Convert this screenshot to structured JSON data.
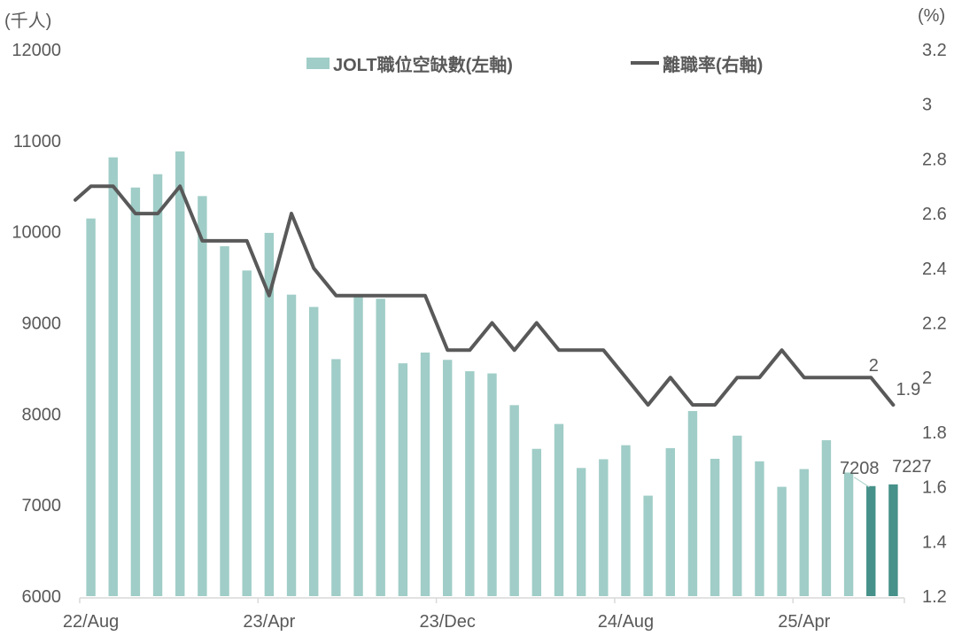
{
  "page": {
    "background": "#ffffff"
  },
  "legend": {
    "bar_label": "JOLT職位空缺數(左軸)",
    "line_label": "離職率(右軸)"
  },
  "colors": {
    "text": "#595959",
    "axis_line": "#d9d9d9",
    "leader_line": "#b3d6d0",
    "bar_light": "#a0cdc7",
    "bar_dark": "#46918a",
    "line": "#595959"
  },
  "chart_data": {
    "type": "bar",
    "subtype": "combo bar(left axis) + line(right axis)",
    "title": "",
    "categories": [
      "22/Aug",
      "22/Sep",
      "22/Oct",
      "22/Nov",
      "22/Dec",
      "23/Jan",
      "23/Feb",
      "23/Mar",
      "23/Apr",
      "23/May",
      "23/Jun",
      "23/Jul",
      "23/Aug",
      "23/Sep",
      "23/Oct",
      "23/Nov",
      "23/Dec",
      "24/Jan",
      "24/Feb",
      "24/Mar",
      "24/Apr",
      "24/May",
      "24/Jun",
      "24/Jul",
      "24/Aug",
      "24/Sep",
      "24/Oct",
      "24/Nov",
      "24/Dec",
      "25/Jan",
      "25/Feb",
      "25/Mar",
      "25/Apr",
      "25/May",
      "25/Jun",
      "25/Jul",
      "25/Aug"
    ],
    "x_axis": {
      "tick_label_indices": [
        0,
        8,
        16,
        24,
        32
      ],
      "tick_labels": [
        "22/Aug",
        "23/Apr",
        "23/Dec",
        "24/Aug",
        "25/Apr"
      ],
      "tick_mark_interval": 8
    },
    "left_axis": {
      "title": "(千人)",
      "min": 6000,
      "max": 12000,
      "step": 1000,
      "tick_labels": [
        "6000",
        "7000",
        "8000",
        "9000",
        "10000",
        "11000",
        "12000"
      ]
    },
    "right_axis": {
      "title": "(%)",
      "min": 1.2,
      "max": 3.2,
      "step": 0.2,
      "tick_labels": [
        "1.2",
        "1.4",
        "1.6",
        "1.8",
        "2",
        "2.2",
        "2.4",
        "2.6",
        "2.8",
        "3",
        "3.2"
      ]
    },
    "grid": false,
    "legend_position": "top",
    "series": [
      {
        "name": "JOLT職位空缺數(左軸)",
        "type": "bar",
        "axis": "left",
        "highlight_last_n": 2,
        "values": [
          10146,
          10817,
          10486,
          10632,
          10882,
          10392,
          9841,
          9575,
          9988,
          9310,
          9175,
          8602,
          9288,
          9265,
          8556,
          8674,
          8594,
          8469,
          8445,
          8097,
          7617,
          7890,
          7407,
          7503,
          7657,
          7103,
          7625,
          8032,
          7508,
          7762,
          7480,
          7200,
          7395,
          7712,
          7357,
          7208,
          7227
        ]
      },
      {
        "name": "離職率(右軸)",
        "type": "line",
        "axis": "right",
        "leading_stub_rate": 2.65,
        "values": [
          2.7,
          2.7,
          2.6,
          2.6,
          2.7,
          2.5,
          2.5,
          2.5,
          2.3,
          2.6,
          2.4,
          2.3,
          2.3,
          2.3,
          2.3,
          2.3,
          2.1,
          2.1,
          2.2,
          2.1,
          2.2,
          2.1,
          2.1,
          2.1,
          2.0,
          1.9,
          2.0,
          1.9,
          1.9,
          2.0,
          2.0,
          2.1,
          2.0,
          2.0,
          2.0,
          2.0,
          1.9
        ]
      }
    ],
    "annotations": {
      "bar_value_labels": [
        {
          "index": 35,
          "text": "7208",
          "leader": true
        },
        {
          "index": 36,
          "text": "7227",
          "leader": false
        }
      ],
      "line_value_labels": [
        {
          "index": 35,
          "text": "2"
        },
        {
          "index": 36,
          "text": "1.9"
        }
      ]
    }
  }
}
